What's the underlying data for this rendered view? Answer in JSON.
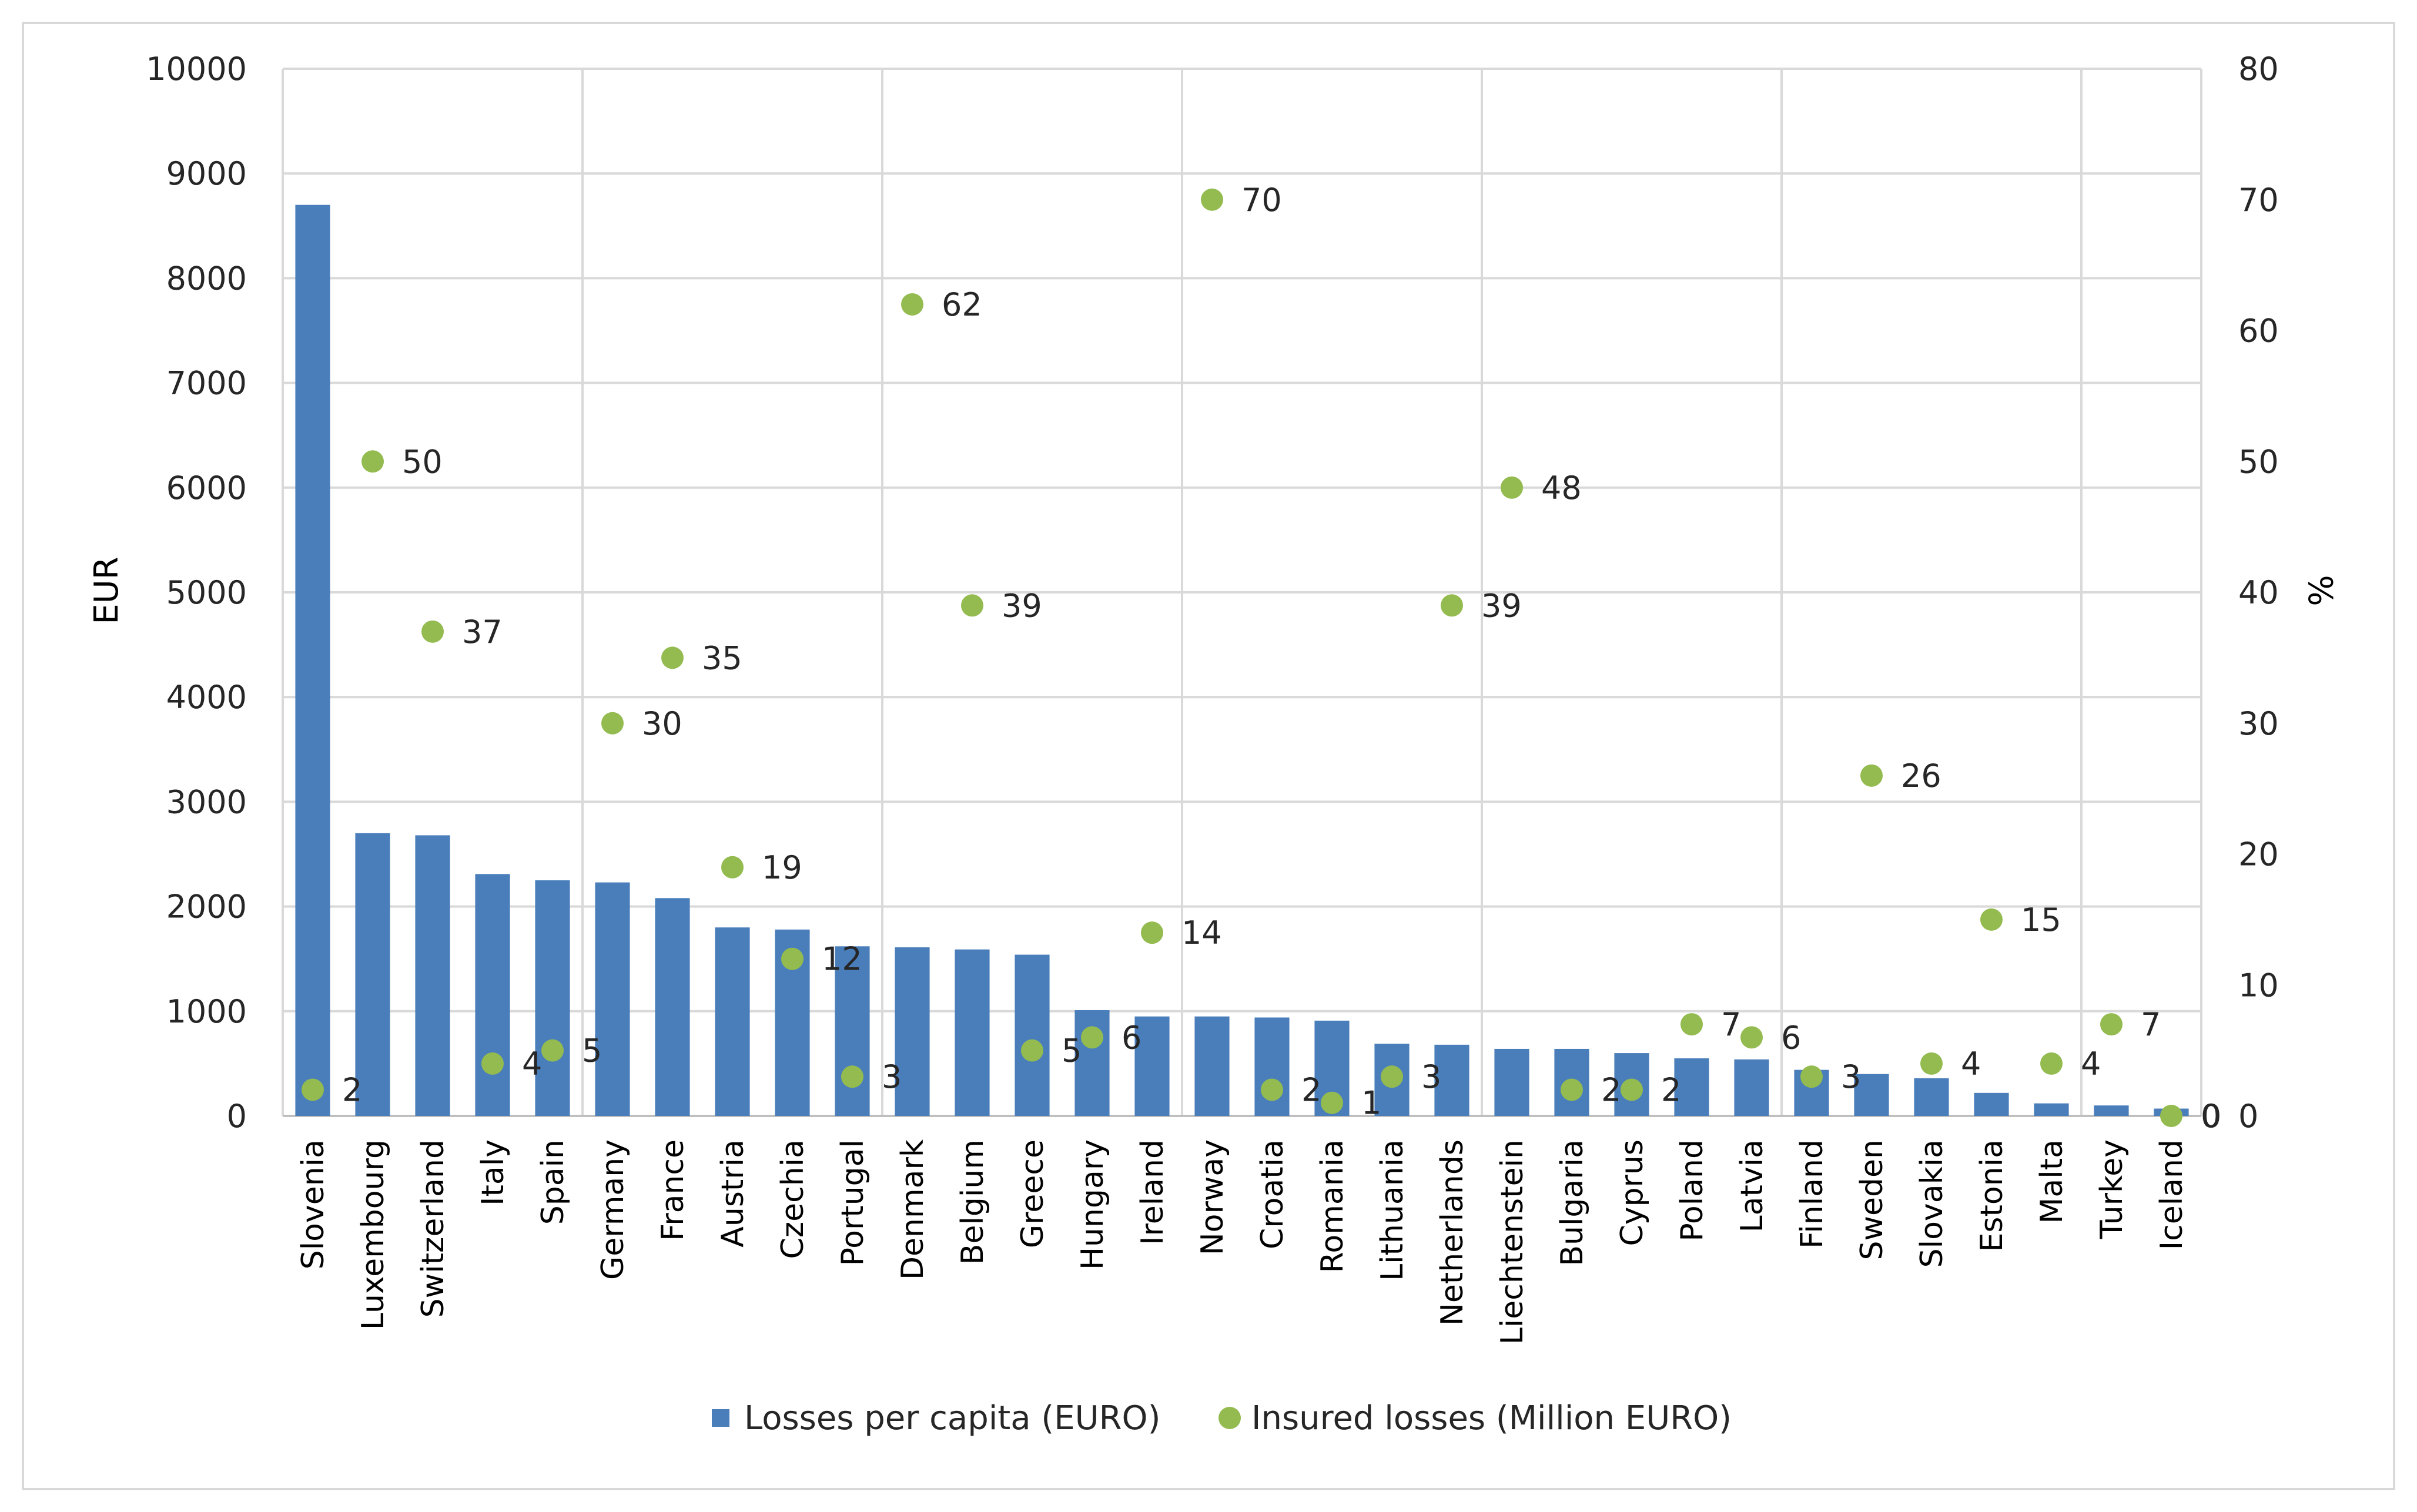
{
  "chart_data": {
    "type": "bar",
    "title": "",
    "categories": [
      "Slovenia",
      "Luxembourg",
      "Switzerland",
      "Italy",
      "Spain",
      "Germany",
      "France",
      "Austria",
      "Czechia",
      "Portugal",
      "Denmark",
      "Belgium",
      "Greece",
      "Hungary",
      "Ireland",
      "Norway",
      "Croatia",
      "Romania",
      "Lithuania",
      "Netherlands",
      "Liechtenstein",
      "Bulgaria",
      "Cyprus",
      "Poland",
      "Latvia",
      "Finland",
      "Sweden",
      "Slovakia",
      "Estonia",
      "Malta",
      "Turkey",
      "Iceland"
    ],
    "series": [
      {
        "name": "Losses per capita (EURO)",
        "type": "bar",
        "axis": "left",
        "color": "#4a7ebb",
        "values": [
          8700,
          2700,
          2680,
          2310,
          2250,
          2230,
          2080,
          1800,
          1780,
          1620,
          1610,
          1590,
          1540,
          1010,
          950,
          950,
          940,
          910,
          690,
          680,
          640,
          640,
          600,
          550,
          540,
          440,
          400,
          360,
          220,
          120,
          100,
          70
        ]
      },
      {
        "name": "Insured losses (Million EURO)",
        "type": "scatter",
        "axis": "right",
        "color": "#93bb4f",
        "values": [
          2,
          50,
          37,
          4,
          5,
          30,
          35,
          19,
          12,
          3,
          62,
          39,
          5,
          6,
          14,
          70,
          2,
          1,
          3,
          39,
          48,
          2,
          2,
          7,
          6,
          3,
          26,
          4,
          15,
          4,
          7,
          0
        ],
        "labels": [
          "2",
          "50",
          "37",
          "4",
          "5",
          "30",
          "35",
          "19",
          "12",
          "3",
          "62",
          "39",
          "5",
          "6",
          "14",
          "70",
          "2",
          "1",
          "3",
          "39",
          "48",
          "2",
          "2",
          "7",
          "6",
          "3",
          "26",
          "4",
          "15",
          "4",
          "7",
          "0"
        ]
      }
    ],
    "y_left": {
      "label": "EUR",
      "ylim": [
        0,
        10000
      ],
      "ticks": [
        "0",
        "1000",
        "2000",
        "3000",
        "4000",
        "5000",
        "6000",
        "7000",
        "8000",
        "9000",
        "10000"
      ]
    },
    "y_right": {
      "label": "%",
      "ylim": [
        0,
        80
      ],
      "ticks": [
        "0",
        "10",
        "20",
        "30",
        "40",
        "50",
        "60",
        "70",
        "80"
      ]
    },
    "extra_right_zero_label": "0",
    "grid": true,
    "legend": {
      "position": "bottom",
      "items": [
        "Losses per capita (EURO)",
        "Insured losses (Million EURO)"
      ]
    }
  }
}
